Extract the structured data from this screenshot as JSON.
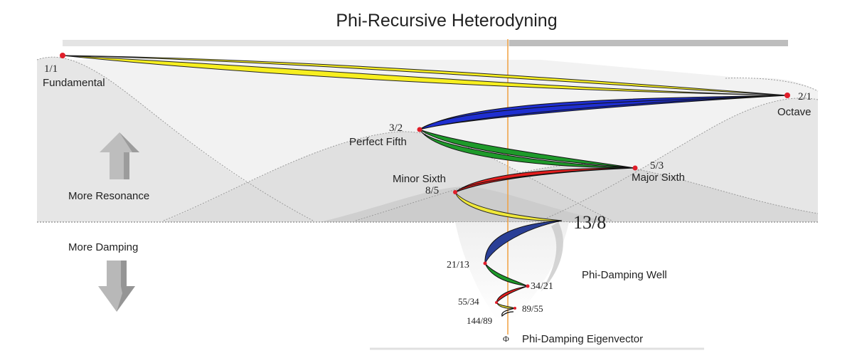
{
  "title": "Phi-Recursive Heterodyning",
  "regions": {
    "resonance": "More Resonance",
    "damping": "More Damping",
    "well": "Phi-Damping Well",
    "eigenvector_symbol": "Φ",
    "eigenvector": "Phi-Damping Eigenvector"
  },
  "nodes": [
    {
      "ratio": "1/1",
      "name": "Fundamental"
    },
    {
      "ratio": "2/1",
      "name": "Octave"
    },
    {
      "ratio": "3/2",
      "name": "Perfect Fifth"
    },
    {
      "ratio": "5/3",
      "name": "Major Sixth"
    },
    {
      "ratio": "8/5",
      "name": "Minor Sixth"
    },
    {
      "ratio": "13/8",
      "name": ""
    },
    {
      "ratio": "21/13",
      "name": ""
    },
    {
      "ratio": "34/21",
      "name": ""
    },
    {
      "ratio": "55/34",
      "name": ""
    },
    {
      "ratio": "89/55",
      "name": ""
    },
    {
      "ratio": "144/89",
      "name": ""
    }
  ],
  "colors": {
    "yellow": "#f7ef1f",
    "blue": "#1f2fd0",
    "green": "#1e9a2a",
    "red": "#e31e1e",
    "navy": "#2a3f96",
    "node": "#e01e2a",
    "axis": "#f0a040",
    "bar_light": "#e6e6e6",
    "bar_dark": "#bdbdbd"
  }
}
